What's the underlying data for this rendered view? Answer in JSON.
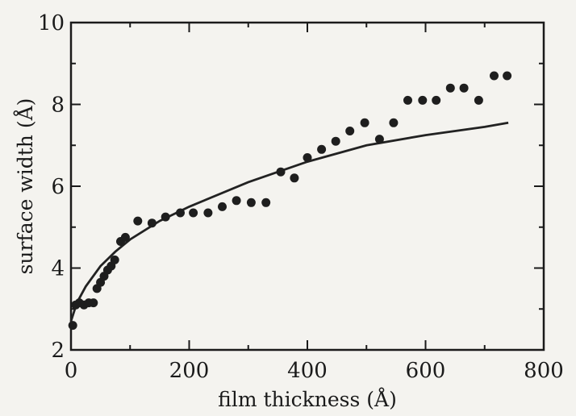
{
  "chart_data": {
    "type": "scatter",
    "xlabel": "film thickness (Å)",
    "ylabel": "surface width (Å)",
    "xlim": [
      0,
      800
    ],
    "ylim": [
      2,
      10
    ],
    "xticks": [
      0,
      200,
      400,
      600,
      800
    ],
    "yticks": [
      2,
      4,
      6,
      8,
      10
    ],
    "xtick_labels": [
      "0",
      "200",
      "400",
      "600",
      "800"
    ],
    "ytick_labels": [
      "2",
      "4",
      "6",
      "8",
      "10"
    ],
    "grid": false,
    "legend": "none",
    "series": [
      {
        "kind": "points",
        "color": "#1e1e1e",
        "points": [
          [
            3,
            2.6
          ],
          [
            8,
            3.1
          ],
          [
            14,
            3.15
          ],
          [
            22,
            3.1
          ],
          [
            30,
            3.15
          ],
          [
            38,
            3.15
          ],
          [
            44,
            3.5
          ],
          [
            50,
            3.65
          ],
          [
            56,
            3.8
          ],
          [
            62,
            3.95
          ],
          [
            68,
            4.05
          ],
          [
            74,
            4.2
          ],
          [
            84,
            4.65
          ],
          [
            92,
            4.75
          ],
          [
            113,
            5.15
          ],
          [
            137,
            5.1
          ],
          [
            160,
            5.25
          ],
          [
            185,
            5.35
          ],
          [
            207,
            5.35
          ],
          [
            232,
            5.35
          ],
          [
            256,
            5.5
          ],
          [
            280,
            5.65
          ],
          [
            305,
            5.6
          ],
          [
            330,
            5.6
          ],
          [
            355,
            6.35
          ],
          [
            378,
            6.2
          ],
          [
            400,
            6.7
          ],
          [
            424,
            6.9
          ],
          [
            448,
            7.1
          ],
          [
            472,
            7.35
          ],
          [
            497,
            7.55
          ],
          [
            522,
            7.15
          ],
          [
            546,
            7.55
          ],
          [
            570,
            8.1
          ],
          [
            595,
            8.1
          ],
          [
            618,
            8.1
          ],
          [
            642,
            8.4
          ],
          [
            665,
            8.4
          ],
          [
            690,
            8.1
          ],
          [
            716,
            8.7
          ],
          [
            738,
            8.7
          ]
        ]
      },
      {
        "kind": "fit-curve",
        "color": "#222222",
        "x": [
          0,
          10,
          25,
          50,
          75,
          100,
          150,
          200,
          300,
          400,
          500,
          600,
          700,
          740
        ],
        "y": [
          2.7,
          3.15,
          3.55,
          4.05,
          4.4,
          4.7,
          5.15,
          5.5,
          6.1,
          6.6,
          7.0,
          7.25,
          7.45,
          7.55
        ]
      }
    ]
  }
}
